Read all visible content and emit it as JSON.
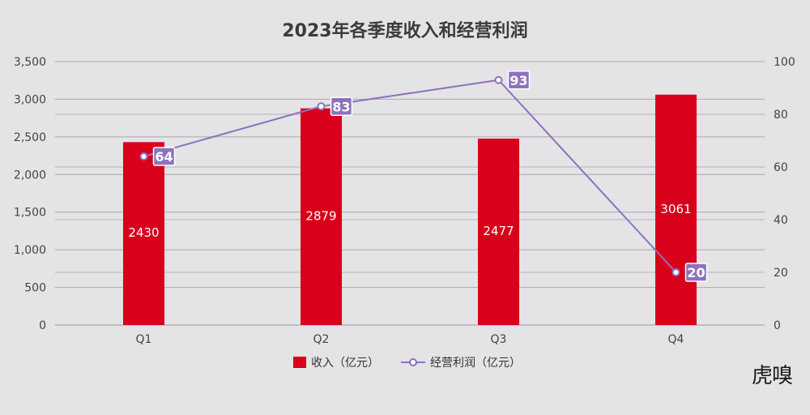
{
  "title": "2023年各季度收入和经营利润",
  "watermark": "虎嗅",
  "chart_data": {
    "type": "bar",
    "categories": [
      "Q1",
      "Q2",
      "Q3",
      "Q4"
    ],
    "series": [
      {
        "name": "收入（亿元）",
        "type": "bar",
        "axis": "left",
        "color": "#d9001b",
        "values": [
          2430,
          2879,
          2477,
          3061
        ]
      },
      {
        "name": "经营利润（亿元）",
        "type": "line",
        "axis": "right",
        "color": "#8e72bd",
        "values": [
          64,
          83,
          93,
          20
        ]
      }
    ],
    "left_axis": {
      "min": 0,
      "max": 3500,
      "ticks": [
        "0",
        "500",
        "1,000",
        "1,500",
        "2,000",
        "2,500",
        "3,000",
        "3,500"
      ]
    },
    "right_axis": {
      "min": 0,
      "max": 100,
      "ticks": [
        "0",
        "20",
        "40",
        "60",
        "80",
        "100"
      ]
    },
    "grid": true,
    "legend_position": "bottom"
  }
}
